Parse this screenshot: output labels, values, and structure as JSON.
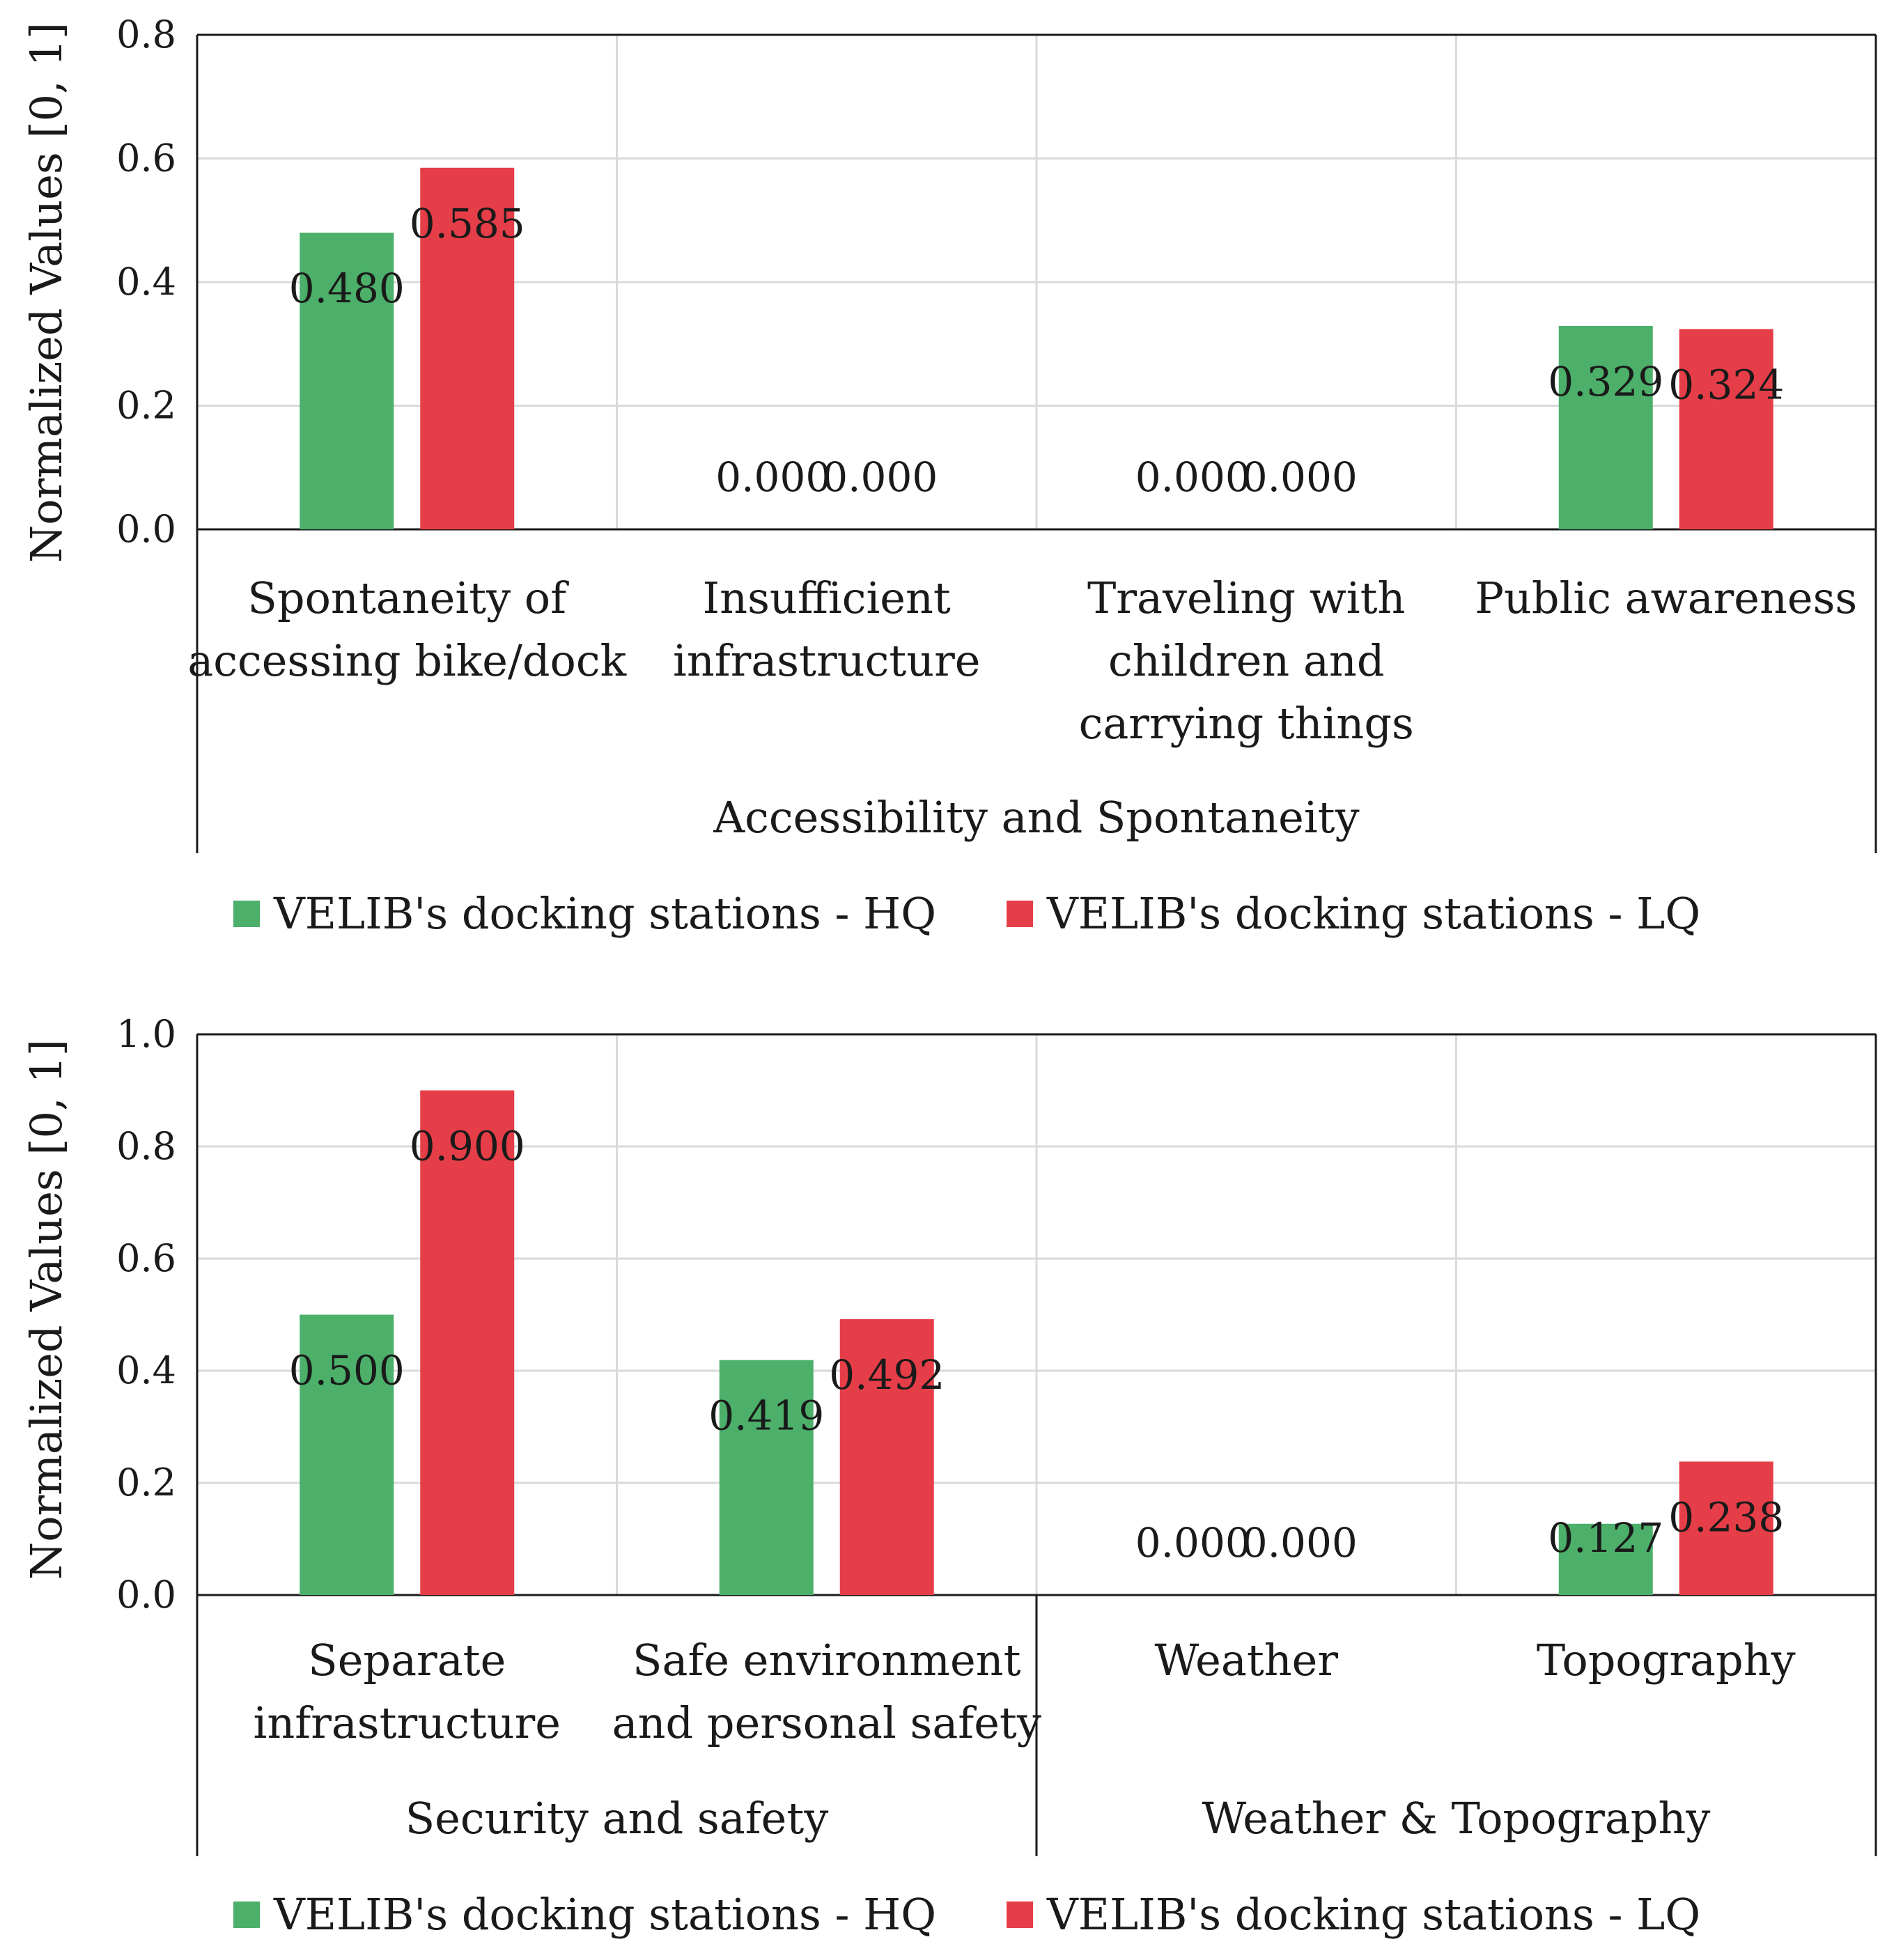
{
  "chart_data": [
    {
      "type": "bar",
      "ylabel": "Normalized Values [0, 1]",
      "ylim": [
        0,
        0.8
      ],
      "yticks": [
        "0.0",
        "0.2",
        "0.4",
        "0.6",
        "0.8"
      ],
      "ytick_values": [
        0,
        0.2,
        0.4,
        0.6,
        0.8
      ],
      "grid": true,
      "categories": [
        {
          "lines": [
            "Spontaneity of",
            "accessing bike/dock"
          ]
        },
        {
          "lines": [
            "Insufficient",
            "infrastructure"
          ]
        },
        {
          "lines": [
            "Traveling with",
            "children and",
            "carrying things"
          ]
        },
        {
          "lines": [
            "Public awareness"
          ]
        }
      ],
      "groups": [
        {
          "label": "Accessibility and Spontaneity",
          "span": 4
        }
      ],
      "series": [
        {
          "name": "VELIB's docking stations - HQ",
          "color": "#4caf6a",
          "values": [
            0.48,
            0.0,
            0.0,
            0.329
          ],
          "labels": [
            "0.480",
            "0.000",
            "0.000",
            "0.329"
          ]
        },
        {
          "name": "VELIB's docking stations - LQ",
          "color": "#e63e48",
          "values": [
            0.585,
            0.0,
            0.0,
            0.324
          ],
          "labels": [
            "0.585",
            "0.000",
            "0.000",
            "0.324"
          ]
        }
      ],
      "legend_position": "bottom"
    },
    {
      "type": "bar",
      "ylabel": "Normalized Values [0, 1]",
      "ylim": [
        0,
        1.0
      ],
      "yticks": [
        "0.0",
        "0.2",
        "0.4",
        "0.6",
        "0.8",
        "1.0"
      ],
      "ytick_values": [
        0,
        0.2,
        0.4,
        0.6,
        0.8,
        1.0
      ],
      "grid": true,
      "categories": [
        {
          "lines": [
            "Separate",
            "infrastructure"
          ]
        },
        {
          "lines": [
            "Safe environment",
            "and personal safety"
          ]
        },
        {
          "lines": [
            "Weather"
          ]
        },
        {
          "lines": [
            "Topography"
          ]
        }
      ],
      "groups": [
        {
          "label": "Security and safety",
          "span": 2
        },
        {
          "label": "Weather & Topography",
          "span": 2
        }
      ],
      "series": [
        {
          "name": "VELIB's docking stations - HQ",
          "color": "#4caf6a",
          "values": [
            0.5,
            0.419,
            0.0,
            0.127
          ],
          "labels": [
            "0.500",
            "0.419",
            "0.000",
            "0.127"
          ]
        },
        {
          "name": "VELIB's docking stations - LQ",
          "color": "#e63e48",
          "values": [
            0.9,
            0.492,
            0.0,
            0.238
          ],
          "labels": [
            "0.900",
            "0.492",
            "0.000",
            "0.238"
          ]
        }
      ],
      "legend_position": "bottom"
    }
  ]
}
